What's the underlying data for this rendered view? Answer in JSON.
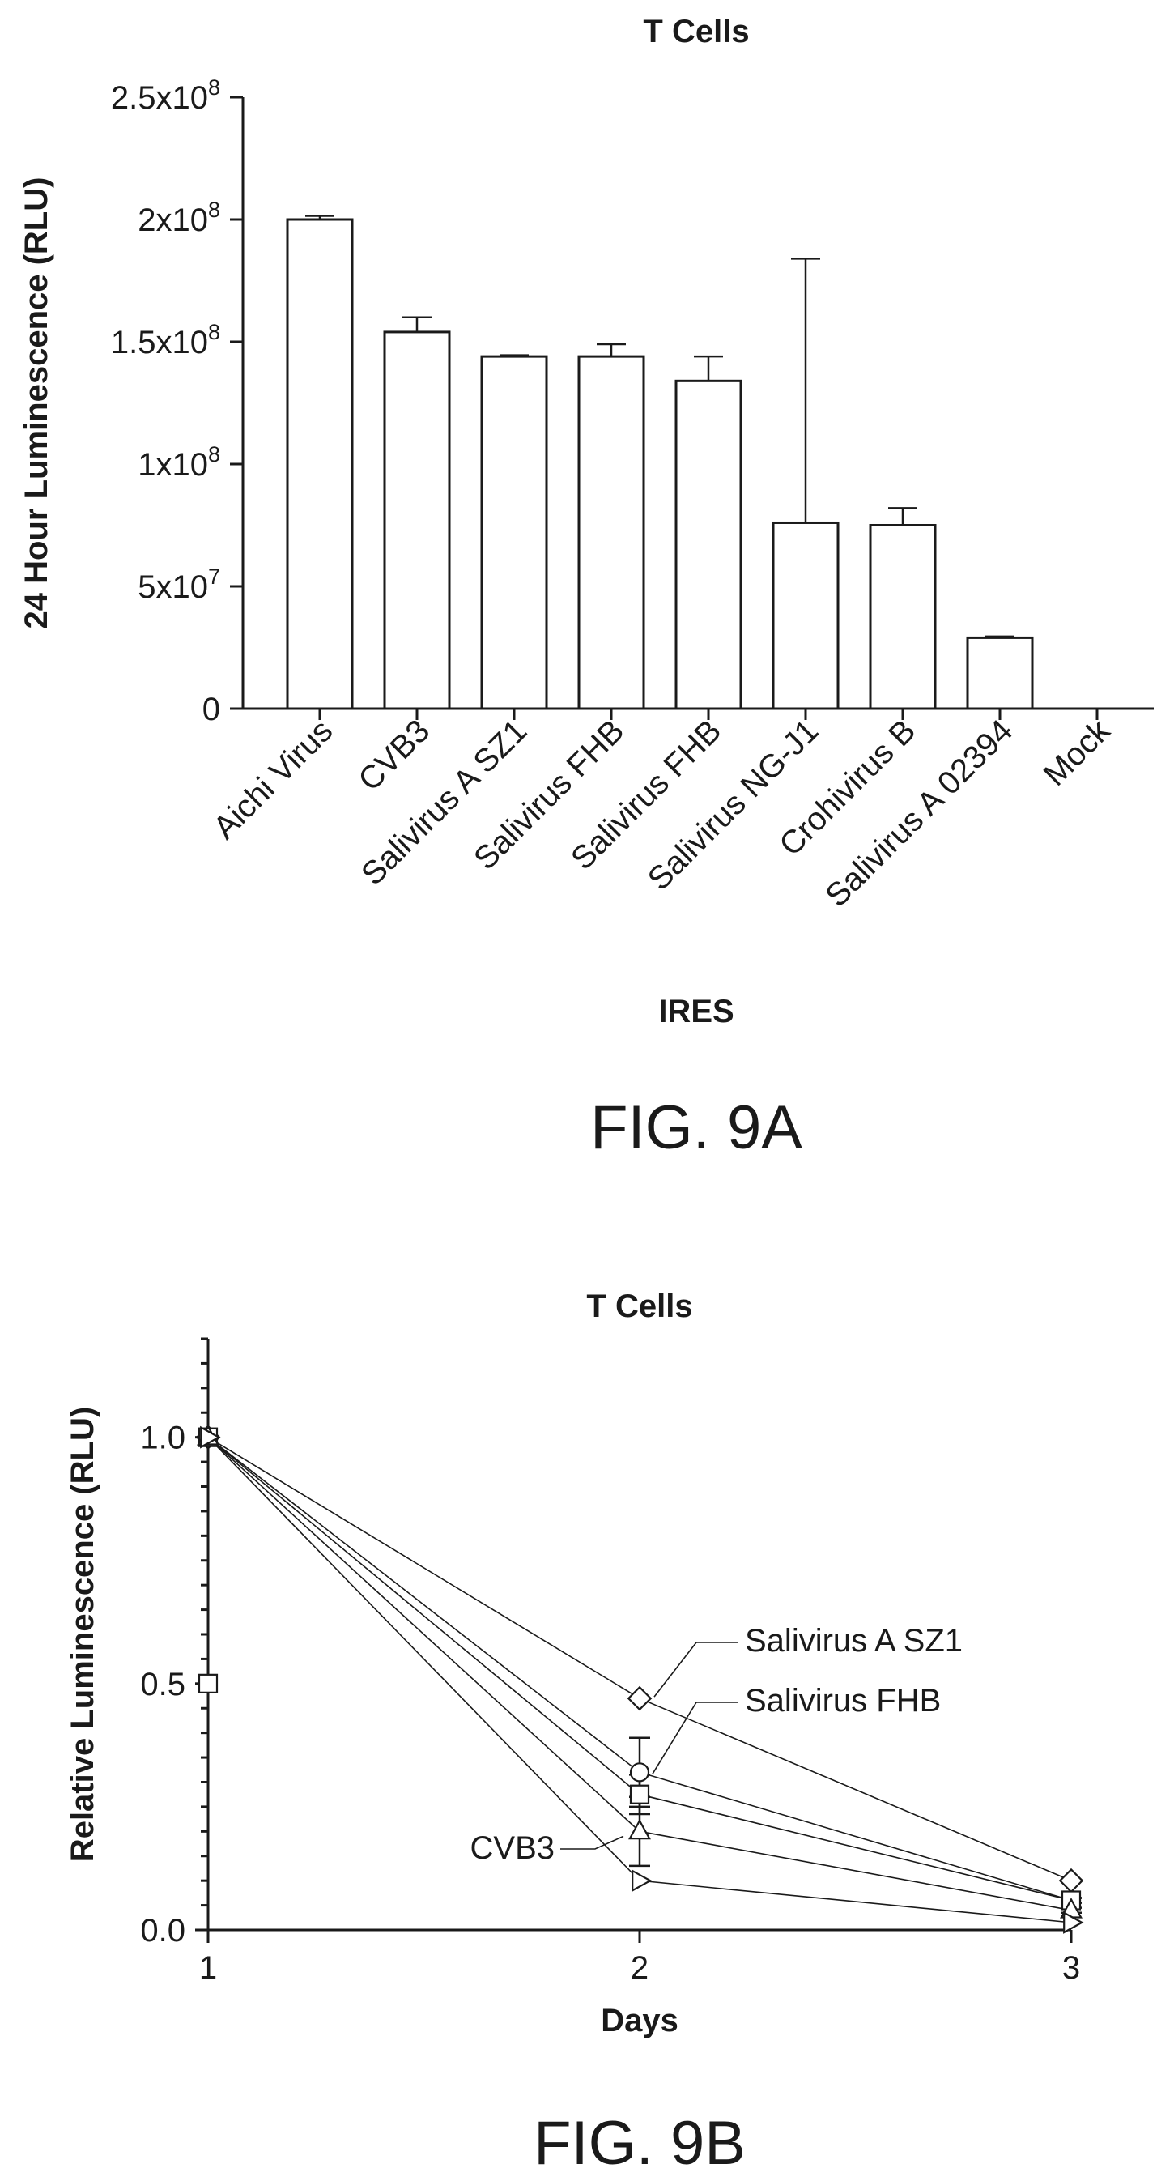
{
  "chart_data": [
    {
      "type": "bar",
      "title": "T Cells",
      "xlabel": "IRES",
      "ylabel": "24 Hour Luminescence (RLU)",
      "figure_label": "FIG. 9A",
      "ylim": [
        0,
        250000000
      ],
      "yticks": [
        {
          "value": 0,
          "label": "0",
          "sup": ""
        },
        {
          "value": 50000000,
          "label": "5x10",
          "sup": "7"
        },
        {
          "value": 100000000,
          "label": "1x10",
          "sup": "8"
        },
        {
          "value": 150000000,
          "label": "1.5x10",
          "sup": "8"
        },
        {
          "value": 200000000,
          "label": "2x10",
          "sup": "8"
        },
        {
          "value": 250000000,
          "label": "2.5x10",
          "sup": "8"
        }
      ],
      "categories": [
        "Aichi Virus",
        "CVB3",
        "Salivirus A SZ1",
        "Salivirus FHB",
        "Salivirus FHB",
        "Salivirus NG-J1",
        "Crohivirus B",
        "Salivirus A 02394",
        "Mock"
      ],
      "values": [
        200000000,
        154000000,
        144000000,
        144000000,
        134000000,
        76000000,
        75000000,
        29000000,
        0
      ],
      "errors": [
        1500000,
        6000000,
        500000,
        5000000,
        10000000,
        108000000,
        7000000,
        500000,
        0
      ],
      "grid": false,
      "legend": "none"
    },
    {
      "type": "line",
      "title": "T Cells",
      "xlabel": "Days",
      "ylabel": "Relative Luminescence (RLU)",
      "figure_label": "FIG. 9B",
      "xlim": [
        1,
        3
      ],
      "ylim": [
        0,
        1.2
      ],
      "xticks": [
        "1",
        "2",
        "3"
      ],
      "yticks": [
        "0.0",
        "0.5",
        "1.0"
      ],
      "grid": false,
      "legend": "none",
      "x": [
        1,
        2,
        3
      ],
      "series": [
        {
          "name": "Salivirus A SZ1",
          "marker": "diamond",
          "values": [
            1.0,
            0.47,
            0.1
          ]
        },
        {
          "name": "Salivirus FHB",
          "marker": "circle",
          "values": [
            1.0,
            0.32,
            0.06
          ],
          "errors": [
            0,
            0.07,
            0.005
          ]
        },
        {
          "marker": "square",
          "values": [
            1.0,
            0.275,
            0.06
          ],
          "errors": [
            0,
            0.04,
            0.005
          ]
        },
        {
          "marker": "triangle-up",
          "values": [
            1.0,
            0.2,
            0.04
          ],
          "errors": [
            0,
            0.07,
            0.005
          ]
        },
        {
          "name": "CVB3",
          "marker": "triangle-right",
          "values": [
            1.0,
            0.1,
            0.015
          ]
        }
      ],
      "extra_points": [
        {
          "marker": "square",
          "x": 1,
          "y": 0.5
        }
      ]
    }
  ]
}
